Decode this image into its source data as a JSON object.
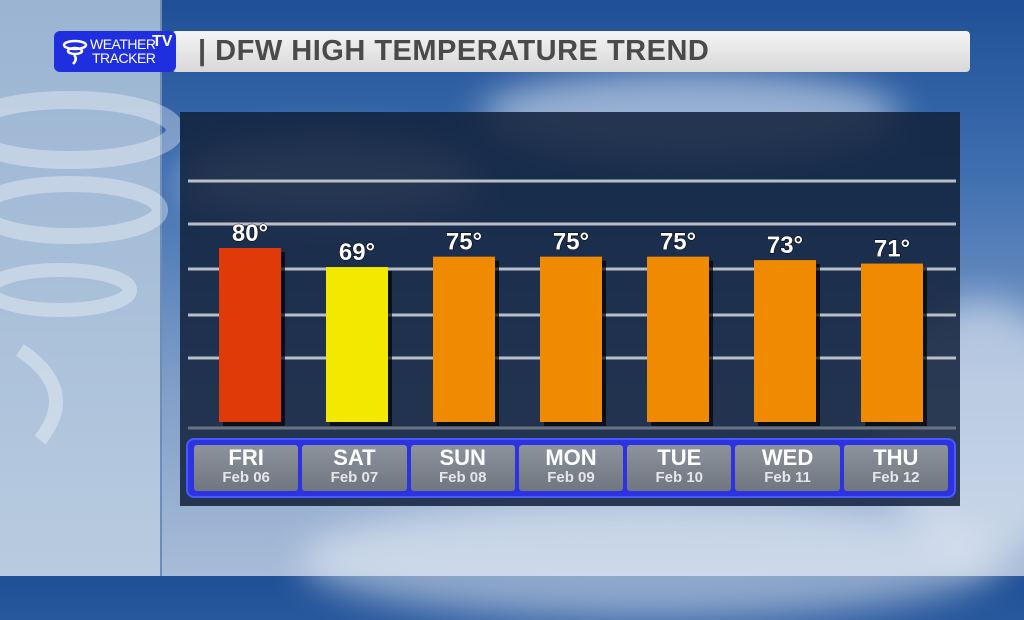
{
  "logo": {
    "line1": "WEATHER",
    "line2": "TRACKER",
    "tv": "TV"
  },
  "title": "| DFW HIGH TEMPERATURE TREND",
  "chart_data": {
    "type": "bar",
    "title": "DFW HIGH TEMPERATURE TREND",
    "categories": [
      "FRI",
      "SAT",
      "SUN",
      "MON",
      "TUE",
      "WED",
      "THU"
    ],
    "dates": [
      "Feb 06",
      "Feb 07",
      "Feb 08",
      "Feb 09",
      "Feb 10",
      "Feb 11",
      "Feb 12"
    ],
    "values": [
      80,
      69,
      75,
      75,
      75,
      73,
      71
    ],
    "labels": [
      "80°",
      "69°",
      "75°",
      "75°",
      "75°",
      "73°",
      "71°"
    ],
    "colors": [
      "#e03a08",
      "#f2e800",
      "#f08a00",
      "#f08a00",
      "#f08a00",
      "#f08a00",
      "#f08a00"
    ],
    "grid": true
  }
}
